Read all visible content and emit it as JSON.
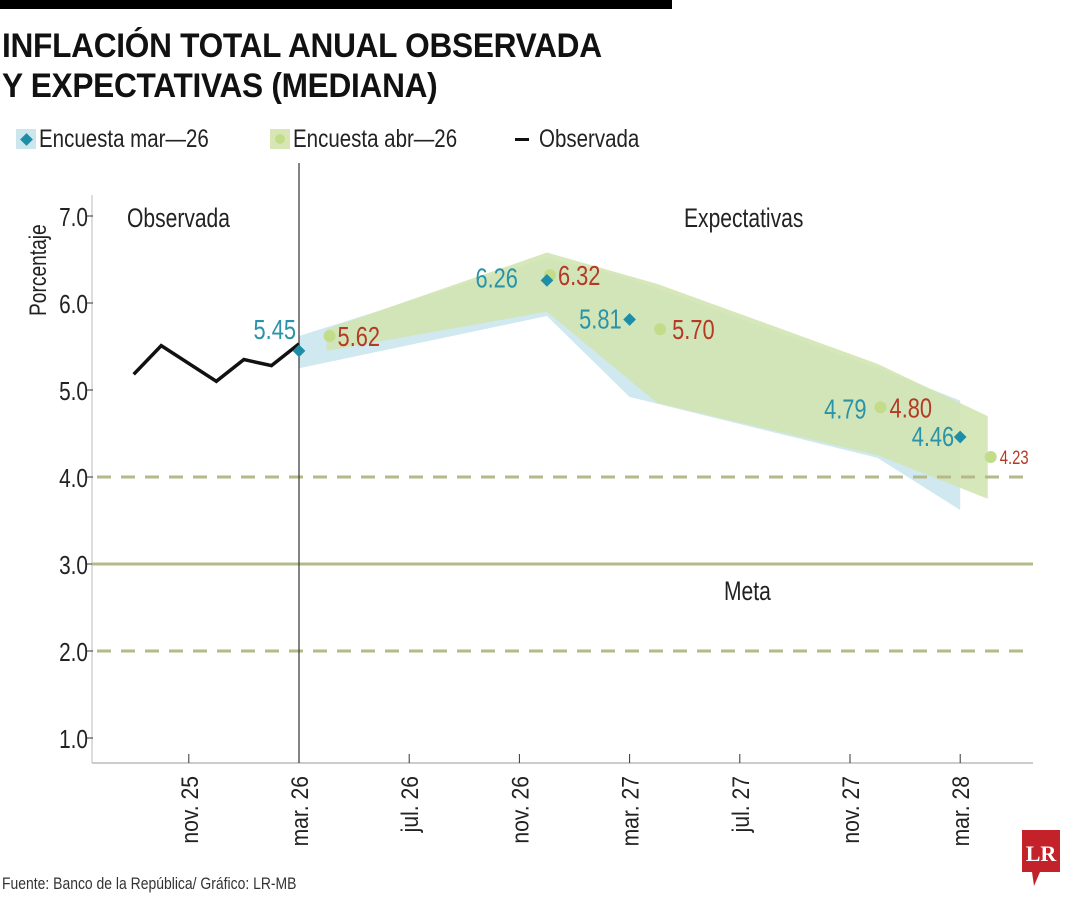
{
  "header": {
    "title_line1": "INFLACIÓN TOTAL ANUAL OBSERVADA",
    "title_line2": "Y EXPECTATIVAS (MEDIANA)"
  },
  "legend": [
    {
      "label": "Encuesta mar—26",
      "icon": "diamond-icon",
      "color": "#1e8ea6",
      "swatch": "#cbe6ed"
    },
    {
      "label": "Encuesta abr—26",
      "icon": "circle-dot-icon",
      "color": "#c2dc8a",
      "swatch": "#d8e6b5"
    },
    {
      "label": "Observada",
      "icon": "dash-icon",
      "color": "#111111"
    }
  ],
  "footer": {
    "source": "Fuente: Banco de la República/ Gráfico: LR-MB",
    "logo_text": "LR"
  },
  "colors": {
    "blue_band": "#cbe6ed",
    "green_band": "#d2e4b3",
    "blue_marker": "#1e8ea6",
    "green_marker": "#c2dc8a",
    "blue_label": "#2a93a8",
    "red_label": "#b33a25",
    "target_line": "#b5b98a",
    "observed_line": "#111111",
    "logo_red": "#c4222a"
  },
  "chart_data": {
    "type": "line",
    "title": "INFLACIÓN TOTAL ANUAL OBSERVADA Y EXPECTATIVAS (MEDIANA)",
    "xlabel": "",
    "ylabel": "Porcentaje",
    "ylim": [
      0.7,
      7.6
    ],
    "yticks": [
      1.0,
      2.0,
      3.0,
      4.0,
      5.0,
      6.0,
      7.0
    ],
    "ytick_labels": [
      "1.0",
      "2.0",
      "3.0",
      "4.0",
      "5.0",
      "6.0",
      "7.0"
    ],
    "x_unit": "months relative to mar. 26",
    "xlim": [
      -7.6,
      26.6
    ],
    "xticks": [
      -4,
      0,
      4,
      8,
      12,
      16,
      20,
      24
    ],
    "xtick_labels": [
      "nov. 25",
      "mar. 26",
      "jul. 26",
      "nov. 26",
      "mar. 27",
      "jul. 27",
      "nov. 27",
      "mar. 28"
    ],
    "section_labels": {
      "left": "Observada",
      "right": "Expectativas",
      "target": "Meta"
    },
    "divider_x": 0,
    "target": 3.0,
    "target_range": [
      2.0,
      4.0
    ],
    "series": [
      {
        "name": "Observada",
        "x": [
          -6,
          -5,
          -3,
          -2,
          -1,
          0
        ],
        "values": [
          5.18,
          5.51,
          5.1,
          5.35,
          5.28,
          5.53
        ]
      },
      {
        "name": "Encuesta mar—26",
        "x": [
          0,
          9,
          12,
          24
        ],
        "values": [
          5.45,
          6.26,
          5.81,
          4.46
        ],
        "labels": [
          "5.45",
          "6.26",
          "5.81",
          "4.46"
        ],
        "band_x": [
          0,
          9,
          12,
          21,
          24
        ],
        "band_upper": [
          5.62,
          6.52,
          6.28,
          5.25,
          4.88
        ],
        "band_lower": [
          5.25,
          5.85,
          4.92,
          4.22,
          3.62
        ]
      },
      {
        "name": "Encuesta abr—26",
        "x": [
          1,
          9,
          13,
          21,
          25
        ],
        "values": [
          5.62,
          6.32,
          5.7,
          4.8,
          4.23
        ],
        "labels": [
          "5.62",
          "6.32",
          "5.70",
          "4.80",
          "4.23"
        ],
        "extra_label": {
          "x": 21,
          "text": "4.79",
          "series": "Encuesta mar—26"
        },
        "band_x": [
          1,
          9,
          13,
          21,
          25
        ],
        "band_upper": [
          5.7,
          6.58,
          6.22,
          5.3,
          4.7
        ],
        "band_lower": [
          5.45,
          5.9,
          4.85,
          4.25,
          3.75
        ]
      }
    ]
  }
}
